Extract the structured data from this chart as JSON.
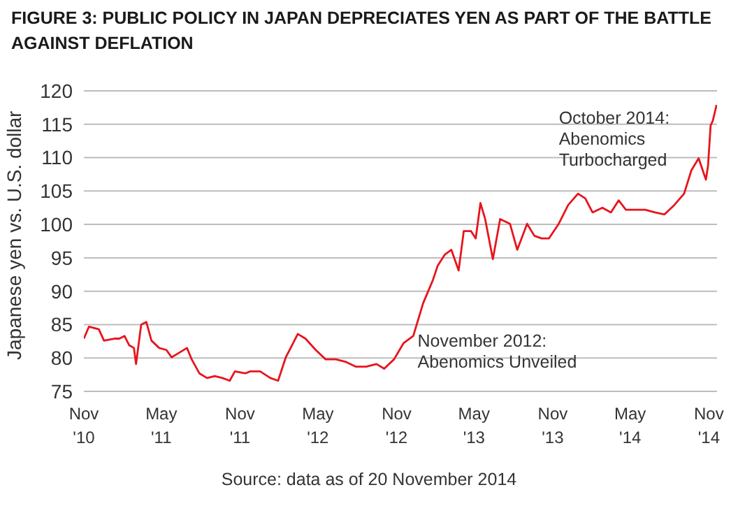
{
  "chart_data": {
    "type": "line",
    "title": "FIGURE 3: PUBLIC POLICY IN JAPAN DEPRECIATES YEN AS PART OF THE BATTLE AGAINST DEFLATION",
    "ylabel": "Japanese yen vs. U.S. dollar",
    "x": [
      "2010-11-01",
      "2010-11-13",
      "2010-12-06",
      "2010-12-18",
      "2011-01-11",
      "2011-01-23",
      "2011-02-04",
      "2011-02-15",
      "2011-02-26",
      "2011-03-03",
      "2011-03-15",
      "2011-03-27",
      "2011-04-08",
      "2011-04-26",
      "2011-05-13",
      "2011-05-25",
      "2011-06-12",
      "2011-06-30",
      "2011-07-11",
      "2011-07-29",
      "2011-08-16",
      "2011-09-03",
      "2011-09-21",
      "2011-10-08",
      "2011-10-20",
      "2011-11-13",
      "2011-11-25",
      "2011-12-18",
      "2012-01-11",
      "2012-01-29",
      "2012-02-16",
      "2012-03-04",
      "2012-03-15",
      "2012-04-02",
      "2012-04-26",
      "2012-05-19",
      "2012-06-12",
      "2012-07-06",
      "2012-07-29",
      "2012-08-22",
      "2012-09-15",
      "2012-10-03",
      "2012-10-26",
      "2012-11-17",
      "2012-12-10",
      "2013-01-02",
      "2013-01-25",
      "2013-02-05",
      "2013-02-22",
      "2013-03-09",
      "2013-03-26",
      "2013-04-07",
      "2013-04-24",
      "2013-05-05",
      "2013-05-16",
      "2013-05-27",
      "2013-06-14",
      "2013-07-01",
      "2013-07-24",
      "2013-08-10",
      "2013-09-02",
      "2013-09-19",
      "2013-10-06",
      "2013-10-23",
      "2013-11-15",
      "2013-12-07",
      "2013-12-30",
      "2014-01-16",
      "2014-02-02",
      "2014-02-25",
      "2014-03-17",
      "2014-04-04",
      "2014-04-21",
      "2014-05-13",
      "2014-06-05",
      "2014-06-28",
      "2014-07-20",
      "2014-08-12",
      "2014-09-04",
      "2014-09-21",
      "2014-10-08",
      "2014-10-25",
      "2014-10-30",
      "2014-11-05",
      "2014-11-10",
      "2014-11-19"
    ],
    "series": [
      {
        "color": "#e8141c",
        "values": [
          82.9,
          84.7,
          84.3,
          82.6,
          82.9,
          82.9,
          83.3,
          81.9,
          81.5,
          79.1,
          85.0,
          85.4,
          82.6,
          81.5,
          81.2,
          80.1,
          80.8,
          81.5,
          79.8,
          77.7,
          77.0,
          77.3,
          77.0,
          76.6,
          78.0,
          77.7,
          78.0,
          78.0,
          77.0,
          76.6,
          80.1,
          82.2,
          83.6,
          82.9,
          81.2,
          79.8,
          79.8,
          79.4,
          78.7,
          78.7,
          79.1,
          78.4,
          79.8,
          82.2,
          83.3,
          88.2,
          91.7,
          93.8,
          95.5,
          96.2,
          93.1,
          99.0,
          99.0,
          97.9,
          103.2,
          100.8,
          94.8,
          100.8,
          100.1,
          96.2,
          100.1,
          98.3,
          97.9,
          97.9,
          100.1,
          102.9,
          104.6,
          103.9,
          101.8,
          102.5,
          101.8,
          103.6,
          102.2,
          102.2,
          102.2,
          101.8,
          101.5,
          102.9,
          104.6,
          108.1,
          109.9,
          106.7,
          108.8,
          114.8,
          115.5,
          117.9
        ]
      }
    ],
    "xlim": [
      "2010-11-01",
      "2014-11-20"
    ],
    "xticks": [
      {
        "value": "2010-11-01",
        "label": "Nov '10"
      },
      {
        "value": "2011-05-01",
        "label": "May '11"
      },
      {
        "value": "2011-11-01",
        "label": "Nov '11"
      },
      {
        "value": "2012-05-01",
        "label": "May '12"
      },
      {
        "value": "2012-11-01",
        "label": "Nov '12"
      },
      {
        "value": "2013-05-01",
        "label": "May '13"
      },
      {
        "value": "2013-11-01",
        "label": "Nov '13"
      },
      {
        "value": "2014-05-01",
        "label": "May '14"
      },
      {
        "value": "2014-11-01",
        "label": "Nov '14"
      }
    ],
    "ylim": [
      75,
      120
    ],
    "yticks": [
      75,
      80,
      85,
      90,
      95,
      100,
      105,
      110,
      115,
      120
    ],
    "grid": "y",
    "legend": false,
    "marker": "none",
    "line_style": "solid",
    "annotations": [
      {
        "text": "October 2014:\nAbenomics\nTurbocharged",
        "x": "2014-10-08",
        "y": 109.9
      },
      {
        "text": "November 2012:\nAbenomics Unveiled",
        "x": "2012-11-01",
        "y": 80
      },
      "Source: data as of 20 November 2014"
    ]
  }
}
